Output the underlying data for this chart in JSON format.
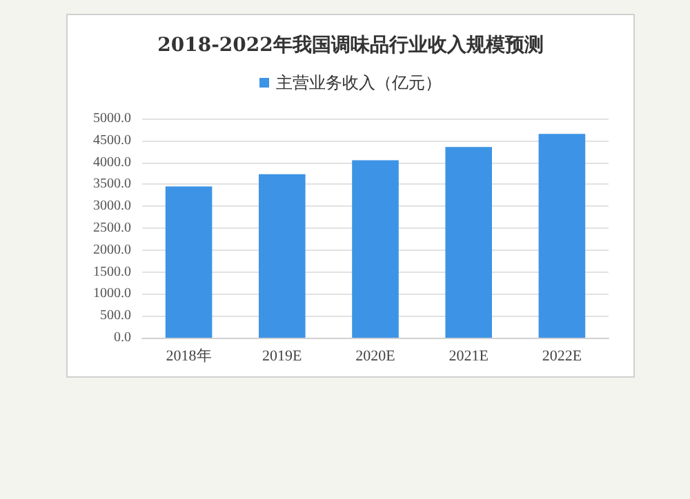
{
  "chart_data": {
    "type": "bar",
    "title": "2018-2022年我国调味品行业收入规模预测",
    "categories": [
      "2018年",
      "2019E",
      "2020E",
      "2021E",
      "2022E"
    ],
    "series": [
      {
        "name": "主营业务收入（亿元）",
        "color": "#3d94e6",
        "values": [
          3450,
          3730,
          4050,
          4350,
          4650
        ]
      }
    ],
    "ylim": [
      0,
      5000
    ],
    "yticks": [
      {
        "value": 0,
        "label": "0.0"
      },
      {
        "value": 500,
        "label": "500.0"
      },
      {
        "value": 1000,
        "label": "1000.0"
      },
      {
        "value": 1500,
        "label": "1500.0"
      },
      {
        "value": 2000,
        "label": "2000.0"
      },
      {
        "value": 2500,
        "label": "2500.0"
      },
      {
        "value": 3000,
        "label": "3000.0"
      },
      {
        "value": 3500,
        "label": "3500.0"
      },
      {
        "value": 4000,
        "label": "4000.0"
      },
      {
        "value": 4500,
        "label": "4500.0"
      },
      {
        "value": 5000,
        "label": "5000.0"
      }
    ],
    "grid": "y",
    "legend": "top"
  }
}
